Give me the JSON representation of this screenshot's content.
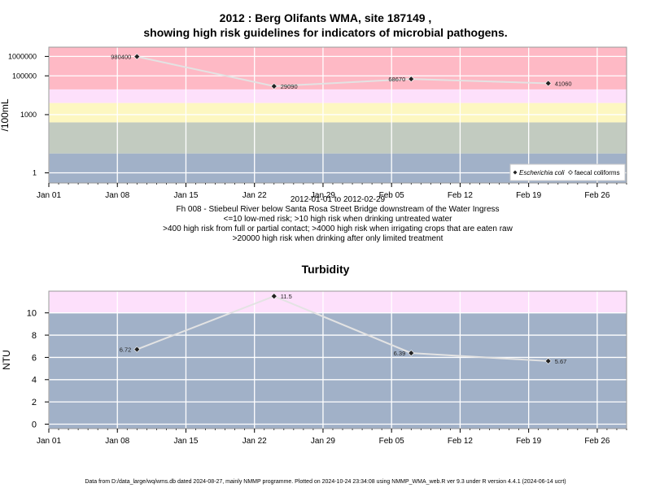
{
  "header": {
    "title_line1": "2012 : Berg Olifants WMA, site 187149 ,",
    "title_line2": "showing high risk guidelines for indicators of microbial pathogens."
  },
  "caption": {
    "date_range": "2012-01-01 to 2012-02-29",
    "site": "Fh 008 - Stiebeul River below Santa Rosa Street Bridge downstream of the Water Ingress",
    "line1": "<=10 low-med risk; >10 high risk when drinking untreated water",
    "line2": ">400 high risk from full or partial contact; >4000 high risk when irrigating crops that are eaten raw",
    "line3": ">20000 high risk when drinking after only limited treatment"
  },
  "turbidity_title": "Turbidity",
  "footer": "Data from D:/data_large/wq/wms.db dated 2024-08-27, mainly NMMP programme. Plotted on 2024-10-24 23:34:08 using NMMP_WMA_web.R ver 9.3 under R version 4.4.1 (2024-06-14 ucrt)",
  "chart_data": [
    {
      "type": "scatter",
      "name": "microbial",
      "x_type": "date",
      "x_range": [
        "2012-01-01",
        "2012-02-29"
      ],
      "x_ticks": [
        "2012-01-01",
        "2012-01-08",
        "2012-01-15",
        "2012-01-22",
        "2012-01-29",
        "2012-02-05",
        "2012-02-12",
        "2012-02-19",
        "2012-02-26"
      ],
      "x_tick_labels": [
        "Jan 01",
        "Jan 08",
        "Jan 15",
        "Jan 22",
        "Jan 29",
        "Feb 05",
        "Feb 12",
        "Feb 19",
        "Feb 26"
      ],
      "y_scale": "log",
      "ylabel": "/100mL",
      "y_ticks": [
        1,
        1000,
        100000,
        1000000
      ],
      "y_tick_labels": [
        "1",
        "1000",
        "100000",
        "1000000"
      ],
      "ylim": [
        0.3,
        3000000
      ],
      "grid": true,
      "bands": [
        {
          "from": 0.3,
          "to": 10,
          "color": "#a1b1c8"
        },
        {
          "from": 10,
          "to": 400,
          "color": "#c2cbc0"
        },
        {
          "from": 400,
          "to": 4000,
          "color": "#fdf7c1"
        },
        {
          "from": 4000,
          "to": 20000,
          "color": "#fde0fb"
        },
        {
          "from": 20000,
          "to": 3000000,
          "color": "#feb9c5"
        }
      ],
      "series": [
        {
          "name": "Escherichia coli",
          "x": [
            "2012-01-10",
            "2012-01-24",
            "2012-02-07",
            "2012-02-21"
          ],
          "y": [
            980400,
            29090,
            68670,
            41060
          ],
          "labels": [
            "980400",
            "29090",
            "68670",
            "41060"
          ]
        }
      ],
      "legend": {
        "position": "bottom-right",
        "items": [
          "Escherichia coli",
          "faecal coliforms"
        ]
      }
    },
    {
      "type": "scatter",
      "name": "turbidity",
      "title": "Turbidity",
      "x_type": "date",
      "x_range": [
        "2012-01-01",
        "2012-02-29"
      ],
      "x_ticks": [
        "2012-01-01",
        "2012-01-08",
        "2012-01-15",
        "2012-01-22",
        "2012-01-29",
        "2012-02-05",
        "2012-02-12",
        "2012-02-19",
        "2012-02-26"
      ],
      "x_tick_labels": [
        "Jan 01",
        "Jan 08",
        "Jan 15",
        "Jan 22",
        "Jan 29",
        "Feb 05",
        "Feb 12",
        "Feb 19",
        "Feb 26"
      ],
      "y_scale": "linear",
      "ylabel": "NTU",
      "y_ticks": [
        0,
        2,
        4,
        6,
        8,
        10
      ],
      "y_tick_labels": [
        "0",
        "2",
        "4",
        "6",
        "8",
        "10"
      ],
      "ylim": [
        -0.4,
        11.95
      ],
      "grid": true,
      "bands": [
        {
          "from": -0.4,
          "to": 10,
          "color": "#a1b1c8"
        },
        {
          "from": 10,
          "to": 11.95,
          "color": "#fde0fb"
        }
      ],
      "series": [
        {
          "name": "Turbidity",
          "x": [
            "2012-01-10",
            "2012-01-24",
            "2012-02-07",
            "2012-02-21"
          ],
          "y": [
            6.72,
            11.5,
            6.39,
            5.67
          ],
          "labels": [
            "6.72",
            "11.5",
            "6.39",
            "5.67"
          ]
        }
      ]
    }
  ]
}
